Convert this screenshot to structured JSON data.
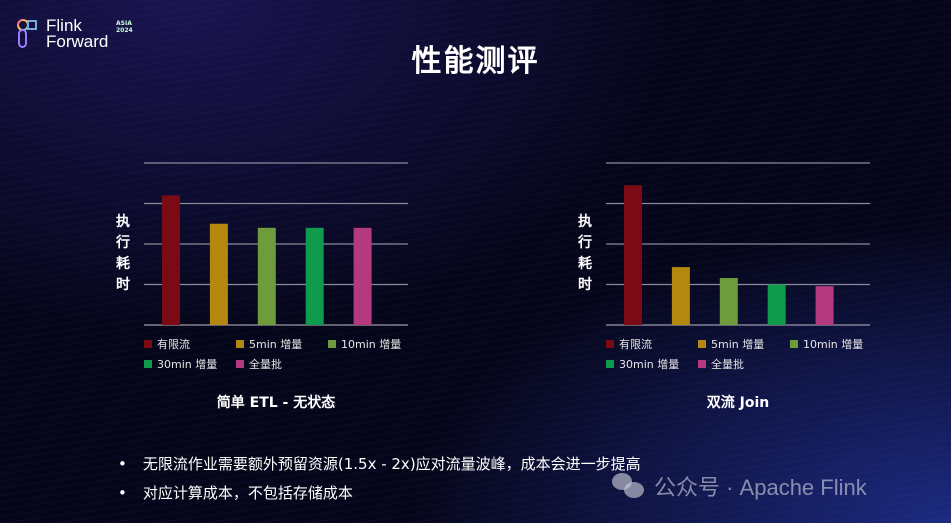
{
  "logo": {
    "line1": "Flink",
    "line2": "Forward",
    "badge": "ASIA 2024"
  },
  "title": "性能测评",
  "colors": {
    "有限流": "#7a0b14",
    "5min 增量": "#b4870e",
    "10min 增量": "#6e9b3c",
    "30min 增量": "#0f9a4c",
    "全量批": "#b43a80"
  },
  "chart_data": [
    {
      "type": "bar",
      "title": "简单 ETL - 无状态",
      "ylabel": "执行耗时",
      "xlabel": "",
      "categories": [
        "有限流",
        "5min 增量",
        "10min 增量",
        "30min 增量",
        "全量批"
      ],
      "values": [
        3.2,
        2.5,
        2.4,
        2.4,
        2.4
      ],
      "ylim": [
        0,
        4
      ],
      "grid": true,
      "yticks_labeled": false,
      "legend": "bottom"
    },
    {
      "type": "bar",
      "title": "双流 Join",
      "ylabel": "执行耗时",
      "xlabel": "",
      "categories": [
        "有限流",
        "5min 增量",
        "10min 增量",
        "30min 增量",
        "全量批"
      ],
      "values": [
        3.45,
        1.43,
        1.16,
        1.0,
        0.96
      ],
      "ylim": [
        0,
        4
      ],
      "grid": true,
      "yticks_labeled": false,
      "legend": "bottom"
    }
  ],
  "bullets": [
    "无限流作业需要额外预留资源(1.5x - 2x)应对流量波峰，成本会进一步提高",
    "对应计算成本，不包括存储成本"
  ],
  "bullet_char": "•",
  "watermark": "公众号 · Apache Flink"
}
